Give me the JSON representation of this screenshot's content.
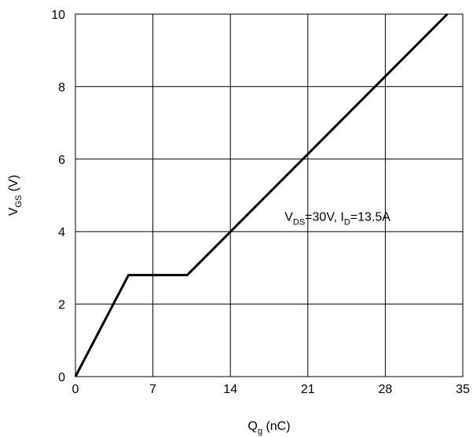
{
  "chart_data": {
    "type": "line",
    "title": "",
    "xlabel": {
      "main": "Q",
      "sub": "g",
      "rest": " (nC)"
    },
    "ylabel": {
      "main": "V",
      "sub": "GS",
      "rest": " (V)"
    },
    "xlim": [
      0,
      35
    ],
    "ylim": [
      0,
      10
    ],
    "xticks": [
      0,
      7,
      14,
      21,
      28,
      35
    ],
    "yticks": [
      0,
      2,
      4,
      6,
      8,
      10
    ],
    "grid": true,
    "series": [
      {
        "x": [
          0,
          4.8,
          10.1,
          33.6
        ],
        "y": [
          0,
          2.8,
          2.8,
          10
        ]
      }
    ],
    "annotation": {
      "x": 18.9,
      "y": 4.3,
      "parts": [
        {
          "t": "V",
          "sub": false
        },
        {
          "t": "DS",
          "sub": true
        },
        {
          "t": "=30V, I",
          "sub": false
        },
        {
          "t": "D",
          "sub": true
        },
        {
          "t": "=13.5A",
          "sub": false
        }
      ]
    }
  }
}
